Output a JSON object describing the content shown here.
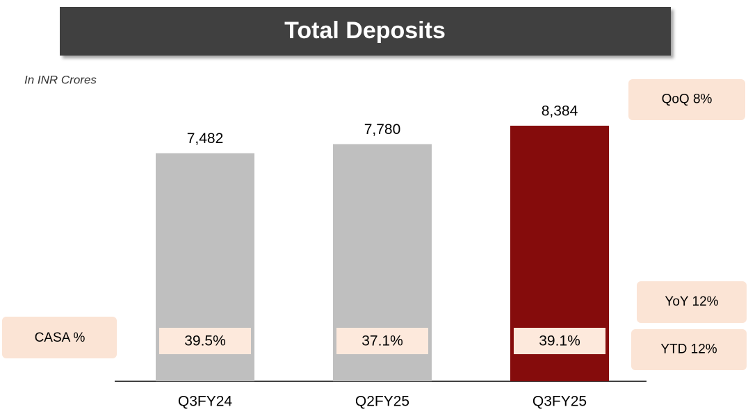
{
  "chart_data": {
    "type": "bar",
    "title": "Total Deposits",
    "subtitle": "In INR Crores",
    "categories": [
      "Q3FY24",
      "Q2FY25",
      "Q3FY25"
    ],
    "values": [
      7482,
      7780,
      8384
    ],
    "value_labels": [
      "7,482",
      "7,780",
      "8,384"
    ],
    "colors": [
      "#bfbfbf",
      "#bfbfbf",
      "#850c0c"
    ],
    "casa": {
      "label": "CASA %",
      "values": [
        39.5,
        37.1,
        39.1
      ],
      "value_labels": [
        "39.5%",
        "37.1%",
        "39.1%"
      ]
    },
    "annotations": [
      "QoQ 8%",
      "YoY 12%",
      "YTD 12%"
    ]
  }
}
